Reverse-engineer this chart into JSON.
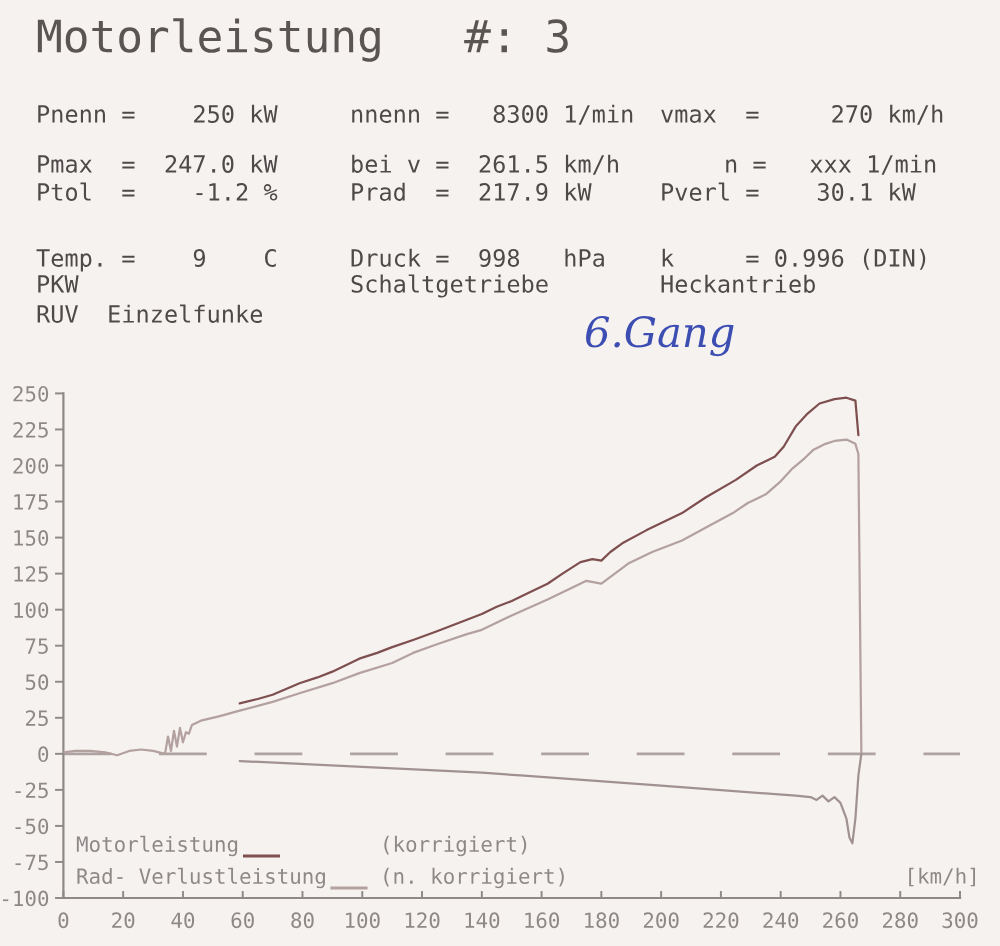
{
  "chart_data": {
    "type": "line",
    "title": "Motorleistung   #: 3",
    "xlabel": "[km/h]",
    "annotations": [
      "Pnenn =    250 kW",
      "nnenn =   8300 1/min",
      "vmax  =     270 km/h",
      "Pmax  =  247.0 kW",
      "bei v =  261.5 km/h",
      "n =   xxx 1/min",
      "Ptol  =    -1.2 %",
      "Prad  =  217.9 kW",
      "Pverl =    30.1 kW",
      "Temp. =    9    C",
      "Druck =  998   hPa",
      "k     = 0.996 (DIN)",
      "PKW",
      "Schaltgetriebe",
      "Heckantrieb",
      "RUV  Einzelfunke",
      "6.Gang",
      "(korrigiert)",
      "(n. korrigiert)"
    ],
    "xlim": [
      0,
      300
    ],
    "xticks": [
      0,
      20,
      40,
      60,
      80,
      100,
      120,
      140,
      160,
      180,
      200,
      220,
      240,
      260,
      280,
      300
    ],
    "ylim": [
      -100,
      250
    ],
    "yticks": [
      -100,
      -75,
      -50,
      -25,
      0,
      25,
      50,
      75,
      100,
      125,
      150,
      175,
      200,
      225,
      250
    ],
    "legend": "bottom left",
    "ref_lines": [
      {
        "axis": "y",
        "value": 0,
        "line_style": "dashed",
        "color": "#aea3a2"
      }
    ],
    "series": [
      {
        "name": "Motorleistung",
        "color": "#7e4f4f",
        "x": [
          59,
          65,
          70,
          79,
          85,
          90,
          99,
          105,
          110,
          117,
          125,
          135,
          140,
          145,
          150,
          155,
          162,
          167,
          173,
          177,
          180,
          183,
          187,
          195,
          207,
          215,
          225,
          232,
          238,
          241,
          245,
          249,
          253,
          258,
          262,
          265,
          266
        ],
        "values": [
          35,
          38,
          41,
          49,
          53,
          57,
          66,
          70,
          74,
          79,
          85,
          93,
          97,
          102,
          106,
          111,
          118,
          125,
          133,
          135,
          134,
          140,
          146,
          155,
          167,
          178,
          190,
          200,
          206,
          213,
          227,
          236,
          243,
          246,
          247,
          245,
          221
        ]
      },
      {
        "name": "Rad- Verlustleistung",
        "color": "#b3a1a0",
        "x": [
          0,
          4,
          9,
          14,
          18,
          22,
          26,
          30,
          34,
          35,
          36,
          37,
          38,
          39,
          40,
          41,
          42,
          43,
          46,
          52,
          59,
          70,
          79,
          90,
          99,
          110,
          117,
          125,
          135,
          140,
          150,
          162,
          170,
          175,
          180,
          189,
          197,
          207,
          215,
          224,
          229,
          235,
          240,
          244,
          248,
          251,
          255,
          258,
          262,
          265,
          266,
          267
        ],
        "values": [
          1,
          2,
          2,
          1,
          -1,
          2,
          3,
          2,
          0,
          12,
          2,
          16,
          5,
          18,
          8,
          15,
          14,
          20,
          23,
          26,
          30,
          36,
          42,
          49,
          56,
          63,
          70,
          76,
          83,
          86,
          96,
          107,
          115,
          120,
          118,
          132,
          140,
          148,
          157,
          167,
          174,
          180,
          189,
          198,
          205,
          211,
          215,
          217,
          218,
          215,
          208,
          0
        ]
      },
      {
        "color": "#a19292",
        "x": [
          59,
          100,
          140,
          153,
          200,
          245,
          250,
          252,
          254,
          256,
          258,
          260,
          262,
          263,
          264,
          265,
          266,
          267
        ],
        "values": [
          -5,
          -9,
          -13,
          -15,
          -22,
          -29,
          -30,
          -32,
          -29,
          -33,
          -30,
          -34,
          -45,
          -58,
          -62,
          -45,
          -15,
          0
        ]
      }
    ]
  }
}
